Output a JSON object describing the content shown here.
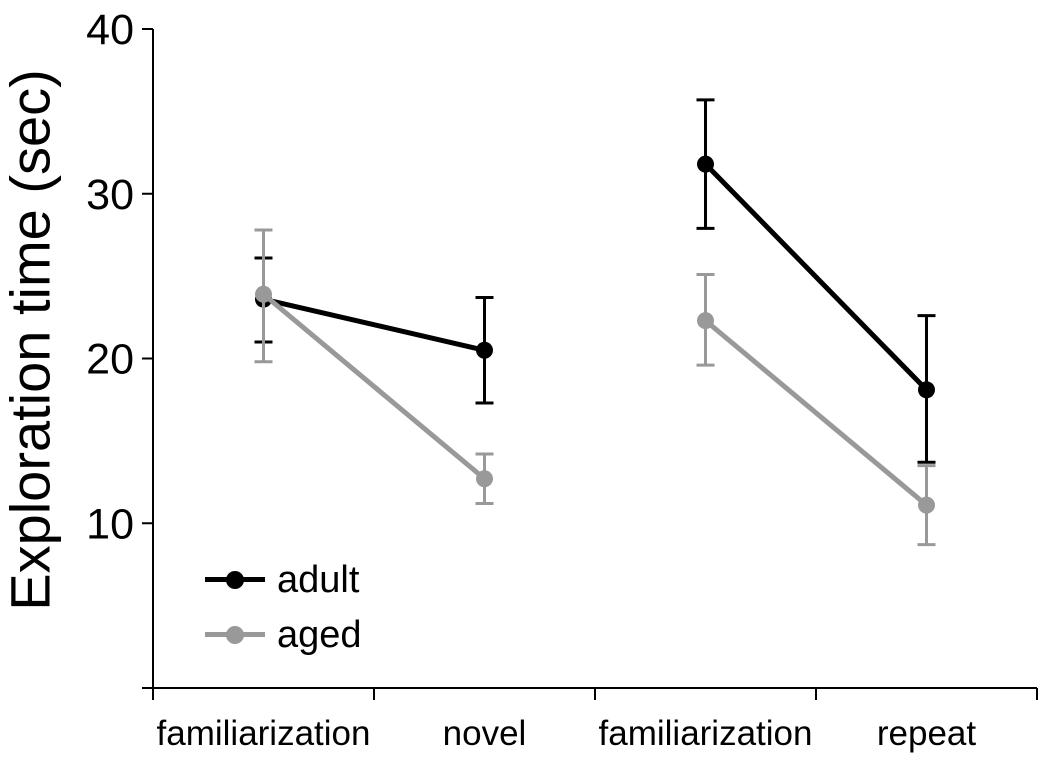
{
  "chart_data": {
    "type": "line",
    "title": "",
    "xlabel": "",
    "ylabel": "Exploration time (sec)",
    "ylim": [
      0,
      40
    ],
    "y_ticks": [
      10,
      20,
      30,
      40
    ],
    "grid": false,
    "legend_position": "lower-left-inside",
    "categories": [
      "familiarization",
      "novel",
      "familiarization",
      "repeat"
    ],
    "connected_pairs": [
      [
        0,
        1
      ],
      [
        2,
        3
      ]
    ],
    "axis_color": "#000000",
    "background_color": "#ffffff",
    "series": [
      {
        "name": "adult",
        "color": "#000000",
        "values": [
          23.6,
          20.5,
          31.8,
          18.1
        ],
        "error_low": [
          21.0,
          17.3,
          27.9,
          13.7
        ],
        "error_high": [
          26.1,
          23.7,
          35.7,
          22.6
        ]
      },
      {
        "name": "aged",
        "color": "#999999",
        "values": [
          23.9,
          12.7,
          22.3,
          11.1
        ],
        "error_low": [
          19.8,
          11.2,
          19.6,
          8.7
        ],
        "error_high": [
          27.8,
          14.2,
          25.1,
          13.5
        ]
      }
    ]
  }
}
